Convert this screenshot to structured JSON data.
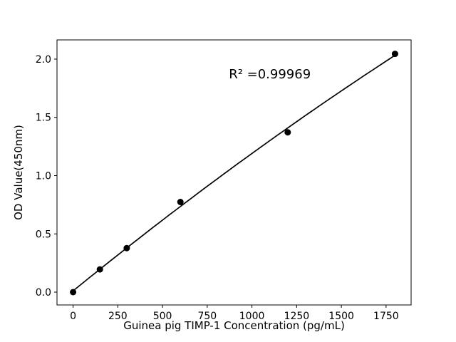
{
  "figure": {
    "background": "#ffffff"
  },
  "chart_data": {
    "type": "scatter",
    "title": "",
    "xlabel": "Guinea pig TIMP-1 Concentration (pg/mL)",
    "ylabel": "OD Value(450nm)",
    "x": [
      0,
      150,
      300,
      600,
      1200,
      1800
    ],
    "y": [
      0.0,
      0.195,
      0.378,
      0.774,
      1.372,
      2.045
    ],
    "xlim": [
      -90,
      1890
    ],
    "ylim": [
      -0.11,
      2.165
    ],
    "xticks": [
      0,
      250,
      500,
      750,
      1000,
      1250,
      1500,
      1750
    ],
    "xtick_labels": [
      "0",
      "250",
      "500",
      "750",
      "1000",
      "1250",
      "1500",
      "1750"
    ],
    "yticks": [
      0.0,
      0.5,
      1.0,
      1.5,
      2.0
    ],
    "ytick_labels": [
      "0.0",
      "0.5",
      "1.0",
      "1.5",
      "2.0"
    ],
    "grid": false,
    "legend": null,
    "marker_color": "#000000",
    "line_color": "#000000",
    "fit": {
      "type": "quadratic",
      "coefficients": [
        0.0108,
        0.00124971,
        -7.0235e-08
      ],
      "range": [
        0,
        1800
      ],
      "r_squared": 0.99969
    },
    "annotation": {
      "text": "R² =0.99969",
      "x": 1100,
      "y": 1.835
    }
  }
}
